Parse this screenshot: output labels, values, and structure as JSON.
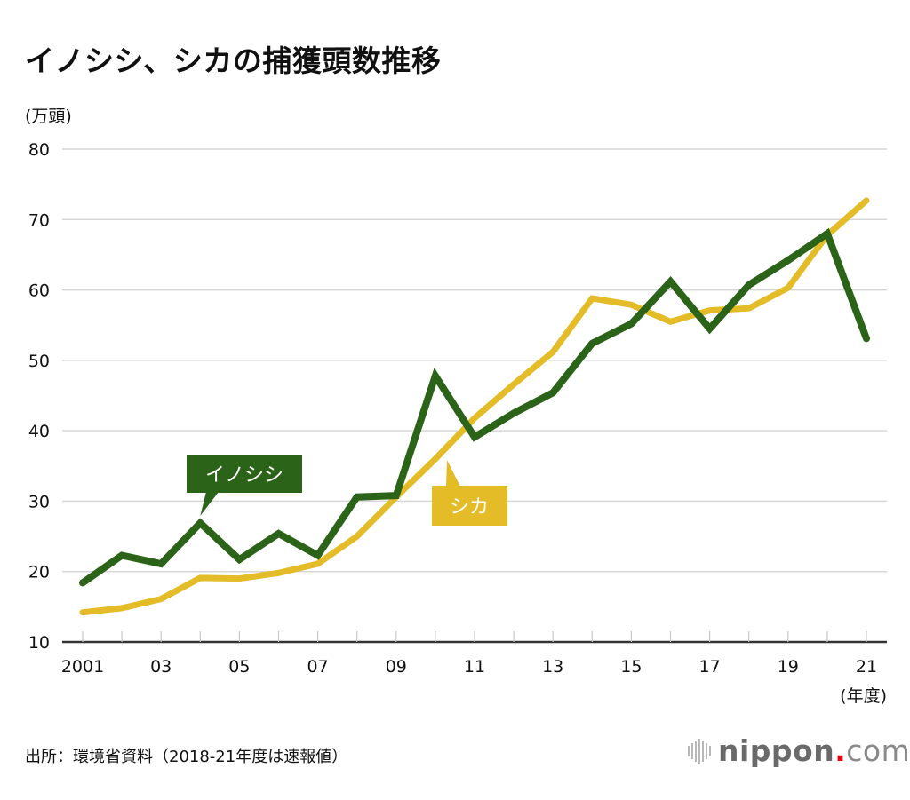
{
  "header": {
    "title": "イノシシ、シカの捕獲頭数推移",
    "unit_label": "(万頭)"
  },
  "footer": {
    "source": "出所：環境省資料（2018-21年度は速報値）",
    "logo": {
      "main": "nippon",
      "dot": ".",
      "suffix": "com"
    }
  },
  "colors": {
    "boar": "#2b6418",
    "deer": "#e3bc27",
    "grid": "#d6d6d6",
    "axis": "#333333"
  },
  "chart_data": {
    "type": "line",
    "title": "イノシシ、シカの捕獲頭数推移",
    "ylabel": "(万頭)",
    "xlabel": "(年度)",
    "ylim": [
      10,
      80
    ],
    "yticks": [
      10,
      20,
      30,
      40,
      50,
      60,
      70,
      80
    ],
    "grid": true,
    "x": [
      2001,
      2002,
      2003,
      2004,
      2005,
      2006,
      2007,
      2008,
      2009,
      2010,
      2011,
      2012,
      2013,
      2014,
      2015,
      2016,
      2017,
      2018,
      2019,
      2020,
      2021
    ],
    "xtick_labels": [
      {
        "year": 2001,
        "label": "2001"
      },
      {
        "year": 2003,
        "label": "03"
      },
      {
        "year": 2005,
        "label": "05"
      },
      {
        "year": 2007,
        "label": "07"
      },
      {
        "year": 2009,
        "label": "09"
      },
      {
        "year": 2011,
        "label": "11"
      },
      {
        "year": 2013,
        "label": "13"
      },
      {
        "year": 2015,
        "label": "15"
      },
      {
        "year": 2017,
        "label": "17"
      },
      {
        "year": 2019,
        "label": "19"
      },
      {
        "year": 2021,
        "label": "21"
      }
    ],
    "series": [
      {
        "name": "イノシシ",
        "color": "#2b6418",
        "values": [
          18.4,
          22.3,
          21.1,
          26.9,
          21.7,
          25.4,
          22.3,
          30.6,
          30.8,
          47.8,
          39.1,
          42.5,
          45.4,
          52.4,
          55.2,
          61.2,
          54.5,
          60.7,
          64.2,
          68.0,
          53.1
        ],
        "label_anchor_year": 2004
      },
      {
        "name": "シカ",
        "color": "#e3bc27",
        "values": [
          14.2,
          14.8,
          16.1,
          19.1,
          19.0,
          19.8,
          21.1,
          25.0,
          30.6,
          36.0,
          41.8,
          46.6,
          51.2,
          58.8,
          57.9,
          55.5,
          57.1,
          57.4,
          60.3,
          67.8,
          72.7
        ],
        "label_anchor_year": 2010.3
      }
    ]
  }
}
